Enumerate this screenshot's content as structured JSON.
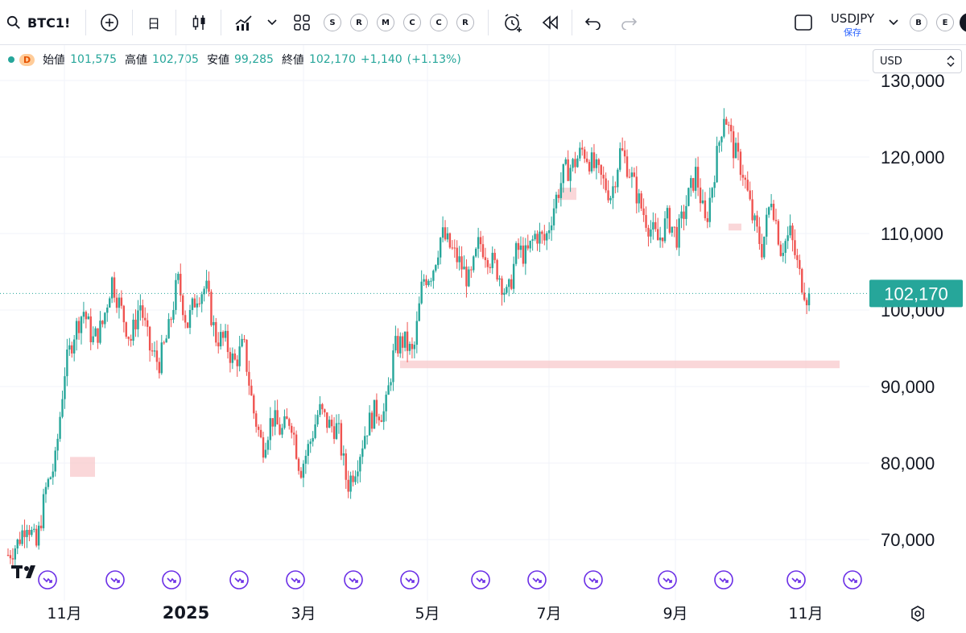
{
  "toolbar": {
    "symbol": "BTC1!",
    "interval": "日",
    "compare_pair": "USDJPY",
    "save_label": "保存",
    "circle_buttons_left": [
      "S",
      "R",
      "M",
      "C",
      "C",
      "R"
    ],
    "circle_buttons_right": [
      "B",
      "E"
    ]
  },
  "legend": {
    "badge": "D",
    "open_label": "始値",
    "open": "101,575",
    "high_label": "高値",
    "high": "102,705",
    "low_label": "安値",
    "low": "99,285",
    "close_label": "終値",
    "close": "102,170",
    "change": "+1,140",
    "change_pct": "(+1.13%)"
  },
  "currency_select": "USD",
  "colors": {
    "up": "#26a69a",
    "down": "#ef5350",
    "last_price_bg": "#26a69a",
    "zone": "#f8c9cc",
    "event_icon": "#6a2ee6"
  },
  "chart_data": {
    "type": "candlestick",
    "y_ticks": [
      70000,
      80000,
      90000,
      100000,
      110000,
      120000,
      130000
    ],
    "y_tick_labels": [
      "70,000",
      "80,000",
      "90,000",
      "100,000",
      "110,000",
      "120,000",
      "130,000"
    ],
    "ylim": [
      64000,
      131000
    ],
    "x_labels": [
      "11月",
      "2025",
      "3月",
      "5月",
      "7月",
      "9月",
      "11月"
    ],
    "last_price": 102170,
    "last_price_label": "102,170",
    "path_closes": [
      68000,
      69500,
      72500,
      69000,
      76500,
      80000,
      92000,
      97000,
      100000,
      96000,
      98000,
      104000,
      100000,
      96000,
      101000,
      95000,
      93000,
      97000,
      104000,
      98000,
      102000,
      103000,
      96500,
      96000,
      93000,
      95500,
      87000,
      82000,
      86000,
      84000,
      86000,
      79000,
      82500,
      87000,
      85000,
      84500,
      77000,
      80000,
      84500,
      87000,
      86500,
      95000,
      96000,
      94000,
      104000,
      105000,
      110000,
      108000,
      106000,
      103500,
      109000,
      107000,
      105000,
      101500,
      108000,
      107000,
      110000,
      109000,
      114000,
      118000,
      119000,
      121000,
      119000,
      117000,
      115000,
      121000,
      118000,
      114000,
      111000,
      109000,
      112000,
      109500,
      114000,
      118000,
      111000,
      118500,
      126000,
      121000,
      118000,
      112000,
      108000,
      115000,
      108000,
      110000,
      104500,
      101000
    ],
    "zones": [
      {
        "x_start": 0.087,
        "x_end": 0.118,
        "y_low": 78200,
        "y_high": 80800
      },
      {
        "x_start": 0.497,
        "x_end": 1.043,
        "y_low": 92400,
        "y_high": 93400
      },
      {
        "x_start": 0.695,
        "x_end": 0.716,
        "y_low": 114400,
        "y_high": 116000
      },
      {
        "x_start": 0.905,
        "x_end": 0.921,
        "y_low": 110400,
        "y_high": 111300
      }
    ],
    "event_markers_count": 14
  }
}
